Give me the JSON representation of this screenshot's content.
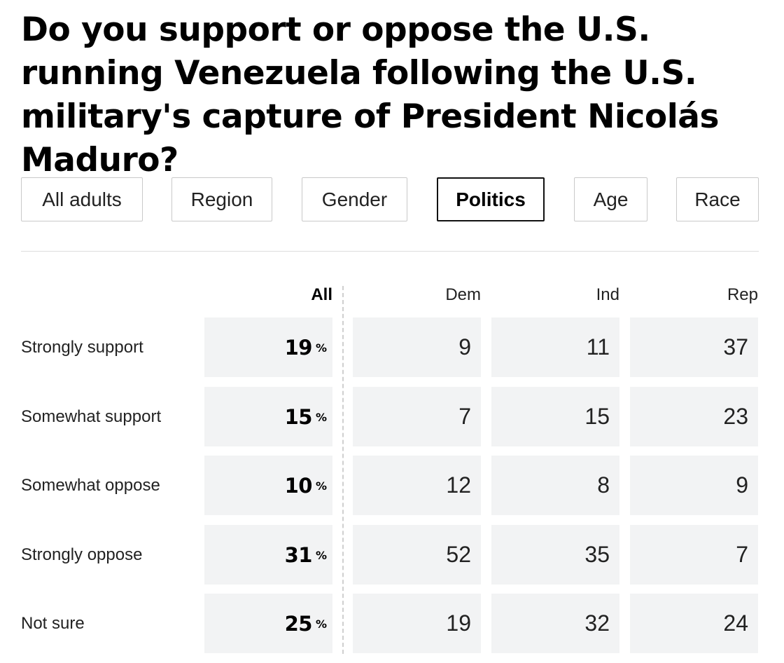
{
  "title": "Do you support or oppose the U.S. running Venezuela following the U.S. military's capture of President Nicolás Maduro?",
  "tabs": [
    {
      "label": "All adults",
      "active": false
    },
    {
      "label": "Region",
      "active": false
    },
    {
      "label": "Gender",
      "active": false
    },
    {
      "label": "Politics",
      "active": true
    },
    {
      "label": "Age",
      "active": false
    },
    {
      "label": "Race",
      "active": false
    }
  ],
  "colors": {
    "cell_background": "#f2f3f4",
    "active_tab_border": "#111111",
    "inactive_tab_border": "#c9c9c9"
  },
  "chart_data": {
    "type": "table",
    "title": "Do you support or oppose the U.S. running Venezuela following the U.S. military's capture of President Nicolás Maduro?",
    "columns": [
      "All",
      "Dem",
      "Ind",
      "Rep"
    ],
    "percent_sign": "%",
    "rows": [
      {
        "label": "Strongly support",
        "all": 19,
        "values": [
          9,
          11,
          37
        ]
      },
      {
        "label": "Somewhat support",
        "all": 15,
        "values": [
          7,
          15,
          23
        ]
      },
      {
        "label": "Somewhat oppose",
        "all": 10,
        "values": [
          12,
          8,
          9
        ]
      },
      {
        "label": "Strongly oppose",
        "all": 31,
        "values": [
          52,
          35,
          7
        ]
      },
      {
        "label": "Not sure",
        "all": 25,
        "values": [
          19,
          32,
          24
        ]
      }
    ]
  }
}
